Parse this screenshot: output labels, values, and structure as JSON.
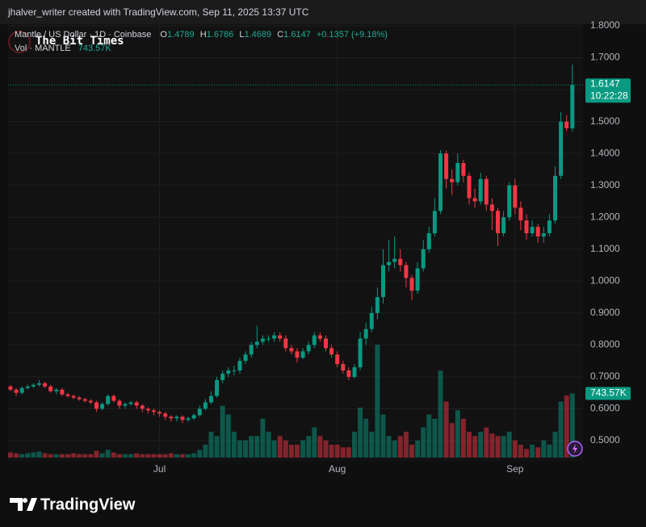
{
  "header": {
    "credit": "jhalver_writer created with TradingView.com, Sep 11, 2025 13:37 UTC"
  },
  "footer": {
    "brand": "TradingView"
  },
  "watermark": "The Bit Times",
  "chart_data": {
    "type": "candlestick",
    "title": "Mantle / US Dollar · 1D · Coinbase",
    "legend_keys": [
      "O",
      "H",
      "L",
      "C"
    ],
    "change_label": "+0.1357 (+9.18%)",
    "countdown": "10:22:28",
    "up_color": "#089981",
    "down_color": "#f23645",
    "series": {
      "open": [
        0.67,
        0.66,
        0.65,
        0.665,
        0.67,
        0.675,
        0.68,
        0.67,
        0.655,
        0.66,
        0.645,
        0.64,
        0.635,
        0.63,
        0.625,
        0.62,
        0.6,
        0.615,
        0.64,
        0.625,
        0.61,
        0.615,
        0.62,
        0.61,
        0.6,
        0.595,
        0.59,
        0.585,
        0.575,
        0.57,
        0.575,
        0.565,
        0.57,
        0.58,
        0.6,
        0.62,
        0.64,
        0.69,
        0.71,
        0.72,
        0.72,
        0.75,
        0.77,
        0.8,
        0.81,
        0.82,
        0.82,
        0.83,
        0.82,
        0.79,
        0.78,
        0.76,
        0.78,
        0.8,
        0.83,
        0.82,
        0.79,
        0.77,
        0.74,
        0.72,
        0.7,
        0.73,
        0.82,
        0.85,
        0.9,
        0.95,
        1.05,
        1.06,
        1.07,
        1.05,
        1.01,
        0.97,
        1.04,
        1.1,
        1.15,
        1.22,
        1.4,
        1.32,
        1.31,
        1.37,
        1.33,
        1.26,
        1.25,
        1.32,
        1.24,
        1.22,
        1.15,
        1.2,
        1.3,
        1.23,
        1.19,
        1.15,
        1.17,
        1.14,
        1.15,
        1.19,
        1.33,
        1.5,
        1.4789
      ],
      "high": [
        0.675,
        0.665,
        0.67,
        0.675,
        0.68,
        0.69,
        0.685,
        0.675,
        0.665,
        0.665,
        0.65,
        0.645,
        0.64,
        0.635,
        0.63,
        0.625,
        0.62,
        0.645,
        0.645,
        0.63,
        0.62,
        0.625,
        0.625,
        0.615,
        0.605,
        0.6,
        0.595,
        0.59,
        0.58,
        0.58,
        0.58,
        0.575,
        0.585,
        0.61,
        0.63,
        0.655,
        0.7,
        0.72,
        0.73,
        0.735,
        0.76,
        0.78,
        0.81,
        0.86,
        0.83,
        0.83,
        0.84,
        0.84,
        0.83,
        0.8,
        0.79,
        0.79,
        0.81,
        0.84,
        0.84,
        0.83,
        0.8,
        0.78,
        0.75,
        0.73,
        0.74,
        0.84,
        0.87,
        0.92,
        0.98,
        1.1,
        1.13,
        1.14,
        1.1,
        1.06,
        1.02,
        1.06,
        1.13,
        1.17,
        1.26,
        1.41,
        1.41,
        1.35,
        1.4,
        1.38,
        1.34,
        1.29,
        1.34,
        1.33,
        1.26,
        1.23,
        1.22,
        1.31,
        1.32,
        1.25,
        1.21,
        1.19,
        1.18,
        1.17,
        1.21,
        1.36,
        1.53,
        1.52,
        1.6786
      ],
      "low": [
        0.655,
        0.64,
        0.645,
        0.66,
        0.665,
        0.67,
        0.665,
        0.65,
        0.645,
        0.64,
        0.635,
        0.63,
        0.625,
        0.62,
        0.615,
        0.59,
        0.595,
        0.61,
        0.62,
        0.6,
        0.6,
        0.61,
        0.6,
        0.59,
        0.585,
        0.58,
        0.575,
        0.565,
        0.56,
        0.56,
        0.555,
        0.56,
        0.565,
        0.575,
        0.595,
        0.615,
        0.635,
        0.68,
        0.7,
        0.705,
        0.71,
        0.74,
        0.76,
        0.79,
        0.8,
        0.81,
        0.81,
        0.81,
        0.78,
        0.77,
        0.745,
        0.755,
        0.77,
        0.79,
        0.81,
        0.78,
        0.76,
        0.73,
        0.71,
        0.69,
        0.695,
        0.72,
        0.8,
        0.84,
        0.88,
        0.93,
        1.03,
        1.04,
        1.03,
        0.98,
        0.94,
        0.96,
        1.03,
        1.09,
        1.14,
        1.21,
        1.29,
        1.27,
        1.3,
        1.31,
        1.24,
        1.23,
        1.24,
        1.22,
        1.16,
        1.11,
        1.14,
        1.19,
        1.21,
        1.16,
        1.13,
        1.14,
        1.12,
        1.12,
        1.14,
        1.18,
        1.32,
        1.47,
        1.4689
      ],
      "close": [
        0.66,
        0.65,
        0.665,
        0.67,
        0.675,
        0.68,
        0.67,
        0.655,
        0.66,
        0.645,
        0.64,
        0.635,
        0.63,
        0.625,
        0.62,
        0.6,
        0.615,
        0.64,
        0.625,
        0.61,
        0.615,
        0.62,
        0.61,
        0.6,
        0.595,
        0.59,
        0.585,
        0.575,
        0.57,
        0.575,
        0.565,
        0.57,
        0.58,
        0.6,
        0.62,
        0.64,
        0.69,
        0.71,
        0.72,
        0.72,
        0.75,
        0.77,
        0.8,
        0.81,
        0.82,
        0.82,
        0.83,
        0.82,
        0.79,
        0.78,
        0.76,
        0.78,
        0.8,
        0.83,
        0.82,
        0.79,
        0.77,
        0.74,
        0.72,
        0.7,
        0.73,
        0.82,
        0.85,
        0.9,
        0.95,
        1.05,
        1.06,
        1.07,
        1.05,
        1.01,
        0.97,
        1.04,
        1.1,
        1.15,
        1.22,
        1.4,
        1.32,
        1.31,
        1.37,
        1.33,
        1.26,
        1.25,
        1.32,
        1.24,
        1.22,
        1.15,
        1.2,
        1.3,
        1.23,
        1.19,
        1.15,
        1.17,
        1.14,
        1.15,
        1.19,
        1.33,
        1.5,
        1.4789,
        1.6147
      ]
    },
    "volume": {
      "name": "Vol · MANTLE",
      "values": [
        60,
        50,
        40,
        50,
        60,
        70,
        50,
        40,
        40,
        40,
        40,
        50,
        40,
        40,
        40,
        80,
        50,
        90,
        60,
        40,
        40,
        40,
        50,
        40,
        40,
        40,
        40,
        40,
        50,
        40,
        40,
        40,
        50,
        90,
        150,
        300,
        250,
        600,
        500,
        300,
        200,
        200,
        250,
        250,
        450,
        300,
        200,
        250,
        200,
        150,
        150,
        200,
        250,
        350,
        250,
        200,
        150,
        150,
        120,
        120,
        300,
        580,
        450,
        300,
        1310,
        500,
        250,
        200,
        250,
        300,
        150,
        200,
        350,
        500,
        450,
        1010,
        650,
        400,
        550,
        450,
        300,
        250,
        300,
        350,
        280,
        250,
        250,
        300,
        200,
        150,
        100,
        150,
        120,
        200,
        150,
        300,
        650,
        720,
        743.57
      ],
      "last_value_label": "743.57K"
    },
    "xlim": [
      -0.42,
      99.86
    ],
    "xticks": [
      {
        "value": 26,
        "label": "Jul"
      },
      {
        "value": 57,
        "label": "Aug"
      },
      {
        "value": 88,
        "label": "Sep"
      }
    ],
    "ylim": [
      0.4394,
      1.8177
    ],
    "yticks": [
      {
        "value": 0.5,
        "label": "0.5000"
      },
      {
        "value": 0.6,
        "label": "0.6000"
      },
      {
        "value": 0.7,
        "label": "0.7000"
      },
      {
        "value": 0.8,
        "label": "0.8000"
      },
      {
        "value": 0.9,
        "label": "0.9000"
      },
      {
        "value": 1.0,
        "label": "1.0000"
      },
      {
        "value": 1.1,
        "label": "1.1000"
      },
      {
        "value": 1.2,
        "label": "1.2000"
      },
      {
        "value": 1.3,
        "label": "1.3000"
      },
      {
        "value": 1.4,
        "label": "1.4000"
      },
      {
        "value": 1.5,
        "label": "1.5000"
      },
      {
        "value": 1.6,
        "label": "1.6000"
      },
      {
        "value": 1.7,
        "label": "1.7000"
      },
      {
        "value": 1.8,
        "label": "1.8000"
      }
    ],
    "grid": true
  }
}
